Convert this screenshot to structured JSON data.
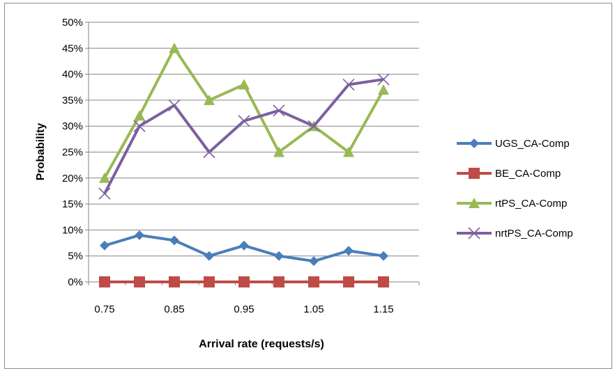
{
  "chart_data": {
    "type": "line",
    "xlabel": "Arrival rate (requests/s)",
    "ylabel": "Probability",
    "x": [
      "0.75",
      "0.8",
      "0.85",
      "0.9",
      "0.95",
      "1",
      "1.05",
      "1.1",
      "1.15"
    ],
    "x_tick_labels": [
      "0.75",
      "0.85",
      "0.95",
      "1.05",
      "1.15"
    ],
    "y_tick_labels": [
      "0%",
      "5%",
      "10%",
      "15%",
      "20%",
      "25%",
      "30%",
      "35%",
      "40%",
      "45%",
      "50%"
    ],
    "ylim": [
      0,
      50
    ],
    "grid": "horizontal",
    "legend_position": "right",
    "series": [
      {
        "name": "UGS_CA-Comp",
        "color": "#4a7ebb",
        "marker": "diamond",
        "values": [
          7,
          9,
          8,
          5,
          7,
          5,
          4,
          6,
          5
        ]
      },
      {
        "name": "BE_CA-Comp",
        "color": "#be4b48",
        "marker": "square",
        "values": [
          0,
          0,
          0,
          0,
          0,
          0,
          0,
          0,
          0
        ]
      },
      {
        "name": "rtPS_CA-Comp",
        "color": "#98b954",
        "marker": "triangle",
        "values": [
          20,
          32,
          45,
          35,
          38,
          25,
          30,
          25,
          37
        ]
      },
      {
        "name": "nrtPS_CA-Comp",
        "color": "#7d60a0",
        "marker": "x",
        "values": [
          17,
          30,
          34,
          25,
          31,
          33,
          30,
          38,
          39
        ]
      }
    ]
  }
}
